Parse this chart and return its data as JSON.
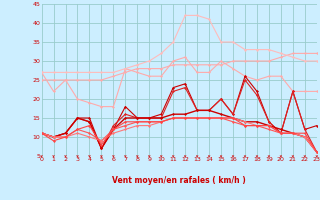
{
  "xlabel": "Vent moyen/en rafales ( km/h )",
  "xlim": [
    0,
    23
  ],
  "ylim": [
    5,
    45
  ],
  "yticks": [
    5,
    10,
    15,
    20,
    25,
    30,
    35,
    40,
    45
  ],
  "xticks": [
    0,
    1,
    2,
    3,
    4,
    5,
    6,
    7,
    8,
    9,
    10,
    11,
    12,
    13,
    14,
    15,
    16,
    17,
    18,
    19,
    20,
    21,
    22,
    23
  ],
  "background_color": "#cceeff",
  "grid_color": "#99cccc",
  "lines": [
    {
      "x": [
        0,
        1,
        2,
        3,
        4,
        5,
        6,
        7,
        8,
        9,
        10,
        11,
        12,
        13,
        14,
        15,
        16,
        17,
        18,
        19,
        20,
        21,
        22,
        23
      ],
      "y": [
        27,
        22,
        25,
        20,
        19,
        18,
        18,
        28,
        27,
        26,
        26,
        30,
        31,
        27,
        27,
        30,
        28,
        26,
        25,
        26,
        26,
        22,
        22,
        22
      ],
      "color": "#ffaaaa",
      "lw": 0.8,
      "marker": "D",
      "ms": 1.5
    },
    {
      "x": [
        0,
        1,
        2,
        3,
        4,
        5,
        6,
        7,
        8,
        9,
        10,
        11,
        12,
        13,
        14,
        15,
        16,
        17,
        18,
        19,
        20,
        21,
        22,
        23
      ],
      "y": [
        25,
        25,
        25,
        25,
        25,
        25,
        26,
        27,
        28,
        28,
        28,
        29,
        29,
        29,
        29,
        29,
        30,
        30,
        30,
        30,
        31,
        32,
        32,
        32
      ],
      "color": "#ffaaaa",
      "lw": 0.8,
      "marker": "D",
      "ms": 1.5
    },
    {
      "x": [
        0,
        1,
        2,
        3,
        4,
        5,
        6,
        7,
        8,
        9,
        10,
        11,
        12,
        13,
        14,
        15,
        16,
        17,
        18,
        19,
        20,
        21,
        22,
        23
      ],
      "y": [
        27,
        27,
        27,
        27,
        27,
        27,
        27,
        28,
        29,
        30,
        32,
        35,
        42,
        42,
        41,
        35,
        35,
        33,
        33,
        33,
        32,
        31,
        30,
        30
      ],
      "color": "#ffbbbb",
      "lw": 0.8,
      "marker": "D",
      "ms": 1.5
    },
    {
      "x": [
        0,
        1,
        2,
        3,
        4,
        5,
        6,
        7,
        8,
        9,
        10,
        11,
        12,
        13,
        14,
        15,
        16,
        17,
        18,
        19,
        20,
        21,
        22,
        23
      ],
      "y": [
        11,
        10,
        11,
        15,
        15,
        7,
        12,
        18,
        15,
        15,
        16,
        23,
        24,
        17,
        17,
        20,
        16,
        26,
        22,
        14,
        11,
        22,
        12,
        13
      ],
      "color": "#cc0000",
      "lw": 0.8,
      "marker": "D",
      "ms": 1.5
    },
    {
      "x": [
        0,
        1,
        2,
        3,
        4,
        5,
        6,
        7,
        8,
        9,
        10,
        11,
        12,
        13,
        14,
        15,
        16,
        17,
        18,
        19,
        20,
        21,
        22,
        23
      ],
      "y": [
        11,
        10,
        11,
        15,
        14,
        7,
        13,
        16,
        15,
        15,
        15,
        22,
        23,
        17,
        17,
        20,
        16,
        25,
        21,
        14,
        11,
        22,
        12,
        6
      ],
      "color": "#dd2222",
      "lw": 0.8,
      "marker": "D",
      "ms": 1.5
    },
    {
      "x": [
        0,
        1,
        2,
        3,
        4,
        5,
        6,
        7,
        8,
        9,
        10,
        11,
        12,
        13,
        14,
        15,
        16,
        17,
        18,
        19,
        20,
        21,
        22,
        23
      ],
      "y": [
        11,
        10,
        11,
        15,
        14,
        7,
        12,
        15,
        15,
        15,
        15,
        16,
        16,
        17,
        17,
        16,
        15,
        14,
        14,
        13,
        12,
        11,
        10,
        6
      ],
      "color": "#cc0000",
      "lw": 1.0,
      "marker": "D",
      "ms": 1.5
    },
    {
      "x": [
        0,
        1,
        2,
        3,
        4,
        5,
        6,
        7,
        8,
        9,
        10,
        11,
        12,
        13,
        14,
        15,
        16,
        17,
        18,
        19,
        20,
        21,
        22,
        23
      ],
      "y": [
        11,
        10,
        10,
        12,
        11,
        9,
        12,
        13,
        14,
        14,
        14,
        15,
        15,
        15,
        15,
        15,
        14,
        13,
        13,
        12,
        11,
        11,
        10,
        6
      ],
      "color": "#ff5555",
      "lw": 0.8,
      "marker": "D",
      "ms": 1.5
    },
    {
      "x": [
        0,
        1,
        2,
        3,
        4,
        5,
        6,
        7,
        8,
        9,
        10,
        11,
        12,
        13,
        14,
        15,
        16,
        17,
        18,
        19,
        20,
        21,
        22,
        23
      ],
      "y": [
        11,
        10,
        10,
        11,
        10,
        9,
        11,
        12,
        13,
        13,
        14,
        15,
        15,
        15,
        15,
        15,
        15,
        14,
        13,
        13,
        11,
        11,
        10,
        6
      ],
      "color": "#ff7777",
      "lw": 0.8,
      "marker": "D",
      "ms": 1.5
    },
    {
      "x": [
        0,
        1,
        2,
        3,
        4,
        5,
        6,
        7,
        8,
        9,
        10,
        11,
        12,
        13,
        14,
        15,
        16,
        17,
        18,
        19,
        20,
        21,
        22,
        23
      ],
      "y": [
        11,
        9,
        10,
        12,
        13,
        8,
        12,
        14,
        14,
        14,
        14,
        15,
        15,
        15,
        15,
        15,
        15,
        13,
        13,
        13,
        11,
        11,
        11,
        6
      ],
      "color": "#ff4444",
      "lw": 0.8,
      "marker": "D",
      "ms": 1.5
    }
  ]
}
